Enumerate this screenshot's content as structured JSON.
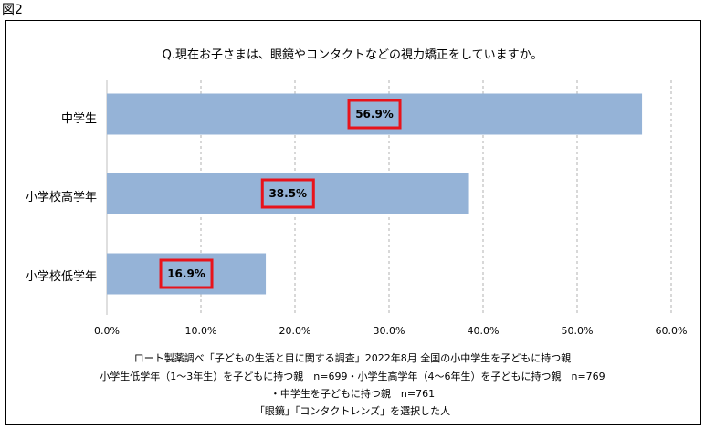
{
  "figure_label": "図2",
  "chart_data": {
    "type": "bar",
    "orientation": "horizontal",
    "title": "Q.現在お子さまは、眼鏡やコンタクトなどの視力矯正をしていますか。",
    "categories": [
      "中学生",
      "小学校高学年",
      "小学校低学年"
    ],
    "values": [
      56.9,
      38.5,
      16.9
    ],
    "value_labels": [
      "56.9%",
      "38.5%",
      "16.9%"
    ],
    "xlim": [
      0,
      60
    ],
    "x_ticks": [
      "0.0%",
      "10.0%",
      "20.0%",
      "30.0%",
      "40.0%",
      "50.0%",
      "60.0%"
    ],
    "x_tick_values": [
      0,
      10,
      20,
      30,
      40,
      50,
      60
    ],
    "grid": "vertical dashed",
    "bar_color": "#95b3d7",
    "highlight_color": "#e8131b"
  },
  "notes": [
    "ロート製薬調べ「子どもの生活と目に関する調査」2022年8月 全国の小中学生を子どもに持つ親",
    "小学生低学年（1～3年生）を子どもに持つ親　n=699・小学生高学年（4～6年生）を子どもに持つ親　n=769",
    "・中学生を子どもに持つ親　n=761",
    "「眼鏡」「コンタクトレンズ」を選択した人"
  ]
}
